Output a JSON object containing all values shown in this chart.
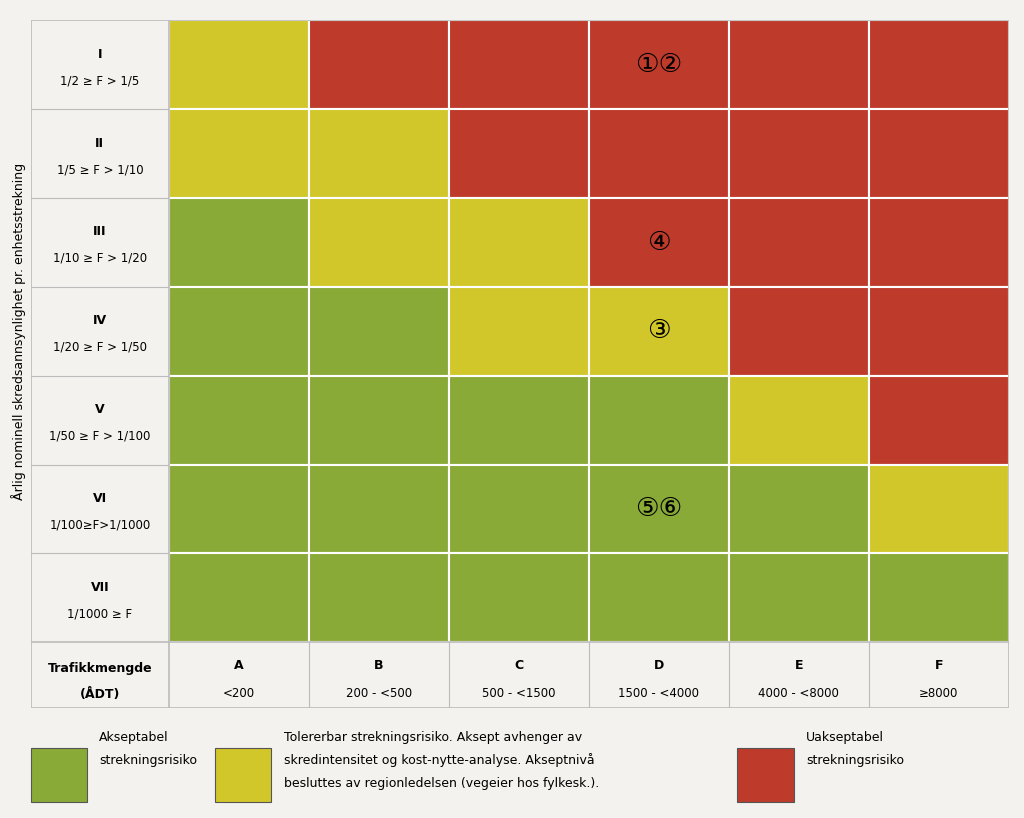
{
  "row_labels_line1": [
    "I",
    "II",
    "III",
    "IV",
    "V",
    "VI",
    "VII"
  ],
  "row_labels_line2": [
    "1/2 ≥ F > 1/5",
    "1/5 ≥ F > 1/10",
    "1/10 ≥ F > 1/20",
    "1/20 ≥ F > 1/50",
    "1/50 ≥ F > 1/100",
    "1/100≥F>1/1000",
    "1/1000 ≥ F"
  ],
  "col_letters": [
    "A",
    "B",
    "C",
    "D",
    "E",
    "F"
  ],
  "col_ranges": [
    "<200",
    "200 - <500",
    "500 - <1500",
    "1500 - <4000",
    "4000 - <8000",
    "≥8000"
  ],
  "colors": [
    [
      "Y",
      "R",
      "R",
      "R",
      "R",
      "R"
    ],
    [
      "Y",
      "Y",
      "R",
      "R",
      "R",
      "R"
    ],
    [
      "G",
      "Y",
      "Y",
      "R",
      "R",
      "R"
    ],
    [
      "G",
      "G",
      "Y",
      "Y",
      "R",
      "R"
    ],
    [
      "G",
      "G",
      "G",
      "G",
      "Y",
      "R"
    ],
    [
      "G",
      "G",
      "G",
      "G",
      "G",
      "Y"
    ],
    [
      "G",
      "G",
      "G",
      "G",
      "G",
      "G"
    ]
  ],
  "color_map": {
    "G": "#8aaa38",
    "Y": "#d2c72a",
    "R": "#be3b2c"
  },
  "annotations": [
    {
      "text": "①②",
      "row": 0,
      "col": 3
    },
    {
      "text": "④",
      "row": 2,
      "col": 3
    },
    {
      "text": "③",
      "row": 3,
      "col": 3
    },
    {
      "text": "⑤⑥",
      "row": 5,
      "col": 3
    }
  ],
  "ylabel": "Årlig nominell skredsannsynlighet pr. enhetsstrekning",
  "xtitle_l1": "Trafikkmengde",
  "xtitle_l2": "(ÅDT)",
  "bg_color": "#f3f2ee",
  "cell_edge_color": "#ffffff",
  "outer_edge_color": "#bbbbbb",
  "legend": [
    {
      "color": "#8aaa38",
      "text1": "Akseptabel",
      "text2": "strekningsrisiko"
    },
    {
      "color": "#d2c72a",
      "text1": "Tolererbar strekningsrisiko. Aksept avhenger av",
      "text2": "skredintensitet og kost-nytte-analyse. Akseptnivå",
      "text3": "besluttes av regionledelsen (vegeier hos fylkesk.)."
    },
    {
      "color": "#be3b2c",
      "text1": "Uakseptabel",
      "text2": "strekningsrisiko"
    }
  ],
  "ann_fontsize": 19,
  "row_label_fontsize": 9,
  "col_label_fontsize": 9,
  "ylabel_fontsize": 9,
  "legend_fontsize": 9
}
